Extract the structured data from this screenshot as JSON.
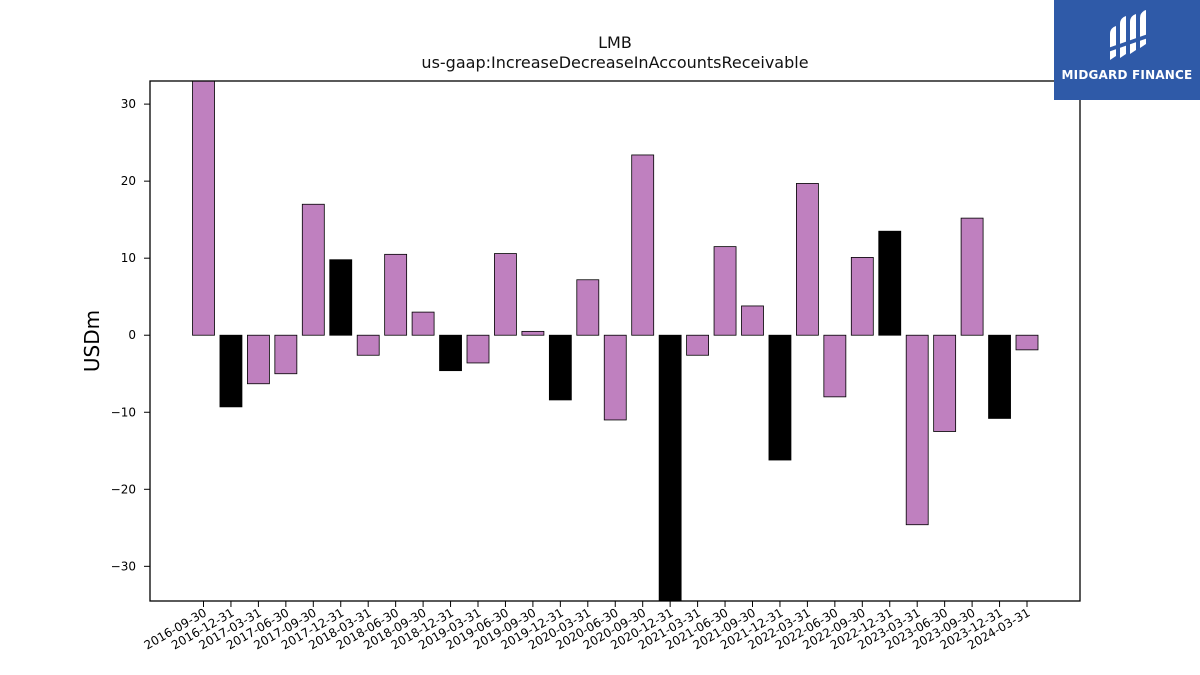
{
  "chart_data": {
    "type": "bar",
    "title": "LMB",
    "subtitle": "us-gaap:IncreaseDecreaseInAccountsReceivable",
    "xlabel": "",
    "ylabel": "USDm",
    "ylim": [
      -34.5,
      33
    ],
    "yticks": [
      -30,
      -20,
      -10,
      0,
      10,
      20,
      30
    ],
    "ytick_labels": [
      "−30",
      "−20",
      "−10",
      "0",
      "10",
      "20",
      "30"
    ],
    "grid": false,
    "categories": [
      "2016-09-30",
      "2016-12-31",
      "2017-03-31",
      "2017-06-30",
      "2017-09-30",
      "2017-12-31",
      "2018-03-31",
      "2018-06-30",
      "2018-09-30",
      "2018-12-31",
      "2019-03-31",
      "2019-06-30",
      "2019-09-30",
      "2019-12-31",
      "2020-03-31",
      "2020-06-30",
      "2020-09-30",
      "2020-12-31",
      "2021-03-31",
      "2021-06-30",
      "2021-09-30",
      "2021-12-31",
      "2022-03-31",
      "2022-06-30",
      "2022-09-30",
      "2022-12-31",
      "2023-03-31",
      "2023-06-30",
      "2023-09-30",
      "2023-12-31",
      "2024-03-31"
    ],
    "values": [
      33,
      -9.3,
      -6.3,
      -5.0,
      17.0,
      9.8,
      -2.6,
      10.5,
      3.0,
      -4.6,
      -3.6,
      10.6,
      0.5,
      -8.4,
      7.2,
      -11.0,
      23.4,
      -34.5,
      -2.6,
      11.5,
      3.8,
      -16.2,
      19.7,
      -8.0,
      10.1,
      13.5,
      -24.6,
      -12.5,
      15.2,
      -10.8,
      -1.9
    ],
    "bar_colors": [
      "#bf80bf",
      "#000000",
      "#bf80bf",
      "#bf80bf",
      "#bf80bf",
      "#000000",
      "#bf80bf",
      "#bf80bf",
      "#bf80bf",
      "#000000",
      "#bf80bf",
      "#bf80bf",
      "#bf80bf",
      "#000000",
      "#bf80bf",
      "#bf80bf",
      "#bf80bf",
      "#000000",
      "#bf80bf",
      "#bf80bf",
      "#bf80bf",
      "#000000",
      "#bf80bf",
      "#bf80bf",
      "#bf80bf",
      "#000000",
      "#bf80bf",
      "#bf80bf",
      "#bf80bf",
      "#000000",
      "#bf80bf"
    ]
  },
  "logo": {
    "text": "MIDGARD FINANCE",
    "background": "#2f5aa8"
  }
}
